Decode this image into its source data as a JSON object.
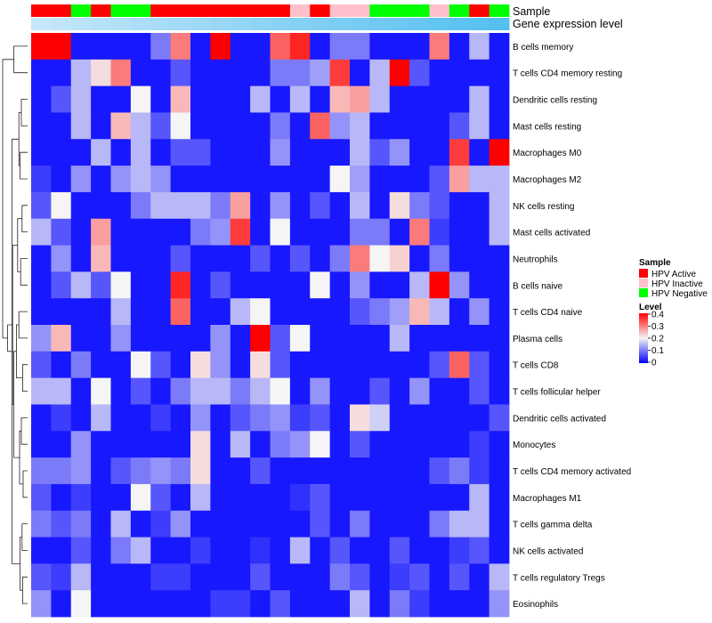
{
  "chart_data": {
    "type": "heatmap",
    "title": "",
    "annotation_tracks": [
      "Sample",
      "Gene expression level"
    ],
    "sample_groups": [
      "HPV Active",
      "HPV Active",
      "HPV Negative",
      "HPV Active",
      "HPV Negative",
      "HPV Negative",
      "HPV Active",
      "HPV Active",
      "HPV Active",
      "HPV Active",
      "HPV Active",
      "HPV Active",
      "HPV Active",
      "HPV Inactive",
      "HPV Active",
      "HPV Inactive",
      "HPV Inactive",
      "HPV Negative",
      "HPV Negative",
      "HPV Negative",
      "HPV Inactive",
      "HPV Negative",
      "HPV Active",
      "HPV Negative"
    ],
    "expression_level": [
      0.9,
      0.87,
      0.84,
      0.81,
      0.78,
      0.75,
      0.72,
      0.69,
      0.66,
      0.63,
      0.6,
      0.57,
      0.54,
      0.51,
      0.48,
      0.45,
      0.42,
      0.39,
      0.36,
      0.33,
      0.3,
      0.27,
      0.24,
      0.21
    ],
    "rows": [
      "B cells memory",
      "T cells CD4 memory resting",
      "Dendritic cells resting",
      "Mast cells resting",
      "Macrophages M0",
      "Macrophages M2",
      "NK cells resting",
      "Mast cells activated",
      "Neutrophils",
      "B cells naive",
      "T cells CD4 naive",
      "Plasma cells",
      "T cells CD8",
      "T cells follicular helper",
      "Dendritic cells activated",
      "Monocytes",
      "T cells CD4 memory activated",
      "Macrophages M1",
      "T cells gamma delta",
      "NK cells activated",
      "T cells regulatory  Tregs",
      "Eosinophils"
    ],
    "values": [
      [
        0.4,
        0.4,
        0.02,
        0.02,
        0.02,
        0.02,
        0.1,
        0.3,
        0.02,
        0.4,
        0.02,
        0.02,
        0.32,
        0.37,
        0.02,
        0.1,
        0.1,
        0.02,
        0.02,
        0.02,
        0.3,
        0.02,
        0.15,
        0.02
      ],
      [
        0.02,
        0.02,
        0.15,
        0.22,
        0.3,
        0.02,
        0.02,
        0.07,
        0.02,
        0.02,
        0.02,
        0.02,
        0.1,
        0.1,
        0.13,
        0.35,
        0.02,
        0.15,
        0.4,
        0.07,
        0.02,
        0.02,
        0.02,
        0.02
      ],
      [
        0.02,
        0.07,
        0.15,
        0.02,
        0.02,
        0.2,
        0.02,
        0.25,
        0.02,
        0.02,
        0.02,
        0.15,
        0.02,
        0.15,
        0.02,
        0.25,
        0.27,
        0.15,
        0.02,
        0.02,
        0.02,
        0.02,
        0.15,
        0.02
      ],
      [
        0.02,
        0.02,
        0.15,
        0.02,
        0.25,
        0.15,
        0.07,
        0.2,
        0.02,
        0.02,
        0.02,
        0.02,
        0.1,
        0.02,
        0.32,
        0.12,
        0.15,
        0.02,
        0.02,
        0.02,
        0.02,
        0.07,
        0.15,
        0.02
      ],
      [
        0.02,
        0.02,
        0.02,
        0.15,
        0.02,
        0.15,
        0.02,
        0.07,
        0.07,
        0.02,
        0.02,
        0.02,
        0.12,
        0.02,
        0.02,
        0.02,
        0.15,
        0.07,
        0.12,
        0.02,
        0.02,
        0.35,
        0.02,
        0.4
      ],
      [
        0.05,
        0.02,
        0.12,
        0.02,
        0.12,
        0.15,
        0.12,
        0.02,
        0.02,
        0.02,
        0.02,
        0.02,
        0.02,
        0.02,
        0.02,
        0.2,
        0.13,
        0.02,
        0.02,
        0.02,
        0.07,
        0.27,
        0.15,
        0.15
      ],
      [
        0.07,
        0.2,
        0.02,
        0.02,
        0.02,
        0.1,
        0.15,
        0.15,
        0.15,
        0.1,
        0.27,
        0.02,
        0.12,
        0.02,
        0.07,
        0.02,
        0.15,
        0.02,
        0.22,
        0.1,
        0.07,
        0.02,
        0.02,
        0.15
      ],
      [
        0.15,
        0.07,
        0.02,
        0.27,
        0.02,
        0.02,
        0.02,
        0.02,
        0.1,
        0.12,
        0.35,
        0.02,
        0.2,
        0.02,
        0.02,
        0.02,
        0.1,
        0.1,
        0.02,
        0.3,
        0.05,
        0.02,
        0.02,
        0.15
      ],
      [
        0.02,
        0.12,
        0.02,
        0.25,
        0.02,
        0.02,
        0.02,
        0.07,
        0.02,
        0.02,
        0.02,
        0.07,
        0.02,
        0.07,
        0.02,
        0.1,
        0.3,
        0.2,
        0.23,
        0.02,
        0.1,
        0.02,
        0.02,
        0.02
      ],
      [
        0.02,
        0.07,
        0.15,
        0.07,
        0.2,
        0.02,
        0.02,
        0.37,
        0.02,
        0.07,
        0.02,
        0.02,
        0.02,
        0.02,
        0.2,
        0.02,
        0.12,
        0.02,
        0.02,
        0.15,
        0.4,
        0.12,
        0.02,
        0.02
      ],
      [
        0.02,
        0.02,
        0.02,
        0.02,
        0.15,
        0.02,
        0.02,
        0.32,
        0.02,
        0.02,
        0.15,
        0.2,
        0.02,
        0.02,
        0.02,
        0.02,
        0.07,
        0.1,
        0.13,
        0.25,
        0.15,
        0.02,
        0.12,
        0.02
      ],
      [
        0.12,
        0.25,
        0.02,
        0.02,
        0.12,
        0.02,
        0.02,
        0.02,
        0.02,
        0.12,
        0.02,
        0.4,
        0.07,
        0.2,
        0.02,
        0.02,
        0.02,
        0.02,
        0.15,
        0.02,
        0.02,
        0.02,
        0.02,
        0.02
      ],
      [
        0.07,
        0.02,
        0.1,
        0.02,
        0.02,
        0.2,
        0.07,
        0.02,
        0.22,
        0.12,
        0.02,
        0.22,
        0.07,
        0.02,
        0.02,
        0.02,
        0.02,
        0.02,
        0.02,
        0.02,
        0.07,
        0.32,
        0.07,
        0.02
      ],
      [
        0.15,
        0.15,
        0.02,
        0.2,
        0.02,
        0.07,
        0.02,
        0.1,
        0.15,
        0.15,
        0.1,
        0.15,
        0.2,
        0.02,
        0.12,
        0.02,
        0.02,
        0.07,
        0.02,
        0.12,
        0.02,
        0.02,
        0.07,
        0.02
      ],
      [
        0.02,
        0.05,
        0.02,
        0.15,
        0.02,
        0.02,
        0.05,
        0.02,
        0.12,
        0.02,
        0.07,
        0.1,
        0.12,
        0.05,
        0.07,
        0.02,
        0.22,
        0.17,
        0.02,
        0.02,
        0.02,
        0.02,
        0.02,
        0.07
      ],
      [
        0.02,
        0.02,
        0.12,
        0.02,
        0.02,
        0.02,
        0.02,
        0.02,
        0.22,
        0.02,
        0.15,
        0.02,
        0.1,
        0.12,
        0.2,
        0.02,
        0.07,
        0.02,
        0.02,
        0.02,
        0.02,
        0.02,
        0.05,
        0.02
      ],
      [
        0.1,
        0.1,
        0.12,
        0.02,
        0.07,
        0.1,
        0.12,
        0.1,
        0.22,
        0.02,
        0.02,
        0.07,
        0.02,
        0.02,
        0.02,
        0.02,
        0.02,
        0.02,
        0.02,
        0.02,
        0.07,
        0.1,
        0.05,
        0.02
      ],
      [
        0.07,
        0.02,
        0.05,
        0.02,
        0.02,
        0.2,
        0.07,
        0.02,
        0.15,
        0.02,
        0.02,
        0.02,
        0.02,
        0.04,
        0.07,
        0.02,
        0.02,
        0.02,
        0.02,
        0.02,
        0.02,
        0.02,
        0.15,
        0.02
      ],
      [
        0.1,
        0.07,
        0.1,
        0.02,
        0.15,
        0.02,
        0.05,
        0.12,
        0.02,
        0.02,
        0.02,
        0.02,
        0.02,
        0.02,
        0.07,
        0.02,
        0.1,
        0.02,
        0.02,
        0.02,
        0.1,
        0.15,
        0.15,
        0.02
      ],
      [
        0.02,
        0.02,
        0.07,
        0.02,
        0.1,
        0.15,
        0.02,
        0.02,
        0.05,
        0.02,
        0.02,
        0.04,
        0.02,
        0.15,
        0.02,
        0.07,
        0.02,
        0.02,
        0.07,
        0.02,
        0.02,
        0.05,
        0.07,
        0.02
      ],
      [
        0.07,
        0.05,
        0.15,
        0.02,
        0.02,
        0.02,
        0.05,
        0.05,
        0.02,
        0.02,
        0.02,
        0.07,
        0.02,
        0.02,
        0.02,
        0.1,
        0.07,
        0.02,
        0.05,
        0.07,
        0.02,
        0.07,
        0.02,
        0.15
      ],
      [
        0.12,
        0.02,
        0.2,
        0.02,
        0.02,
        0.02,
        0.02,
        0.02,
        0.02,
        0.05,
        0.05,
        0.02,
        0.07,
        0.02,
        0.02,
        0.02,
        0.15,
        0.02,
        0.1,
        0.05,
        0.02,
        0.02,
        0.02,
        0.12
      ]
    ],
    "legend_sample": {
      "title": "Sample",
      "entries": [
        {
          "label": "HPV Active",
          "color": "#ff0000"
        },
        {
          "label": "HPV Inactive",
          "color": "#ffc0cb"
        },
        {
          "label": "HPV Negative",
          "color": "#00ff00"
        }
      ]
    },
    "legend_level": {
      "title": "Level",
      "ticks": [
        "0.4",
        "0.3",
        "0.2",
        "0.1",
        "0"
      ],
      "range": [
        0,
        0.4
      ]
    },
    "colors": {
      "low": "#0000ff",
      "mid": "#f5f5f5",
      "high": "#ff0000",
      "mid_value": 0.2
    }
  }
}
